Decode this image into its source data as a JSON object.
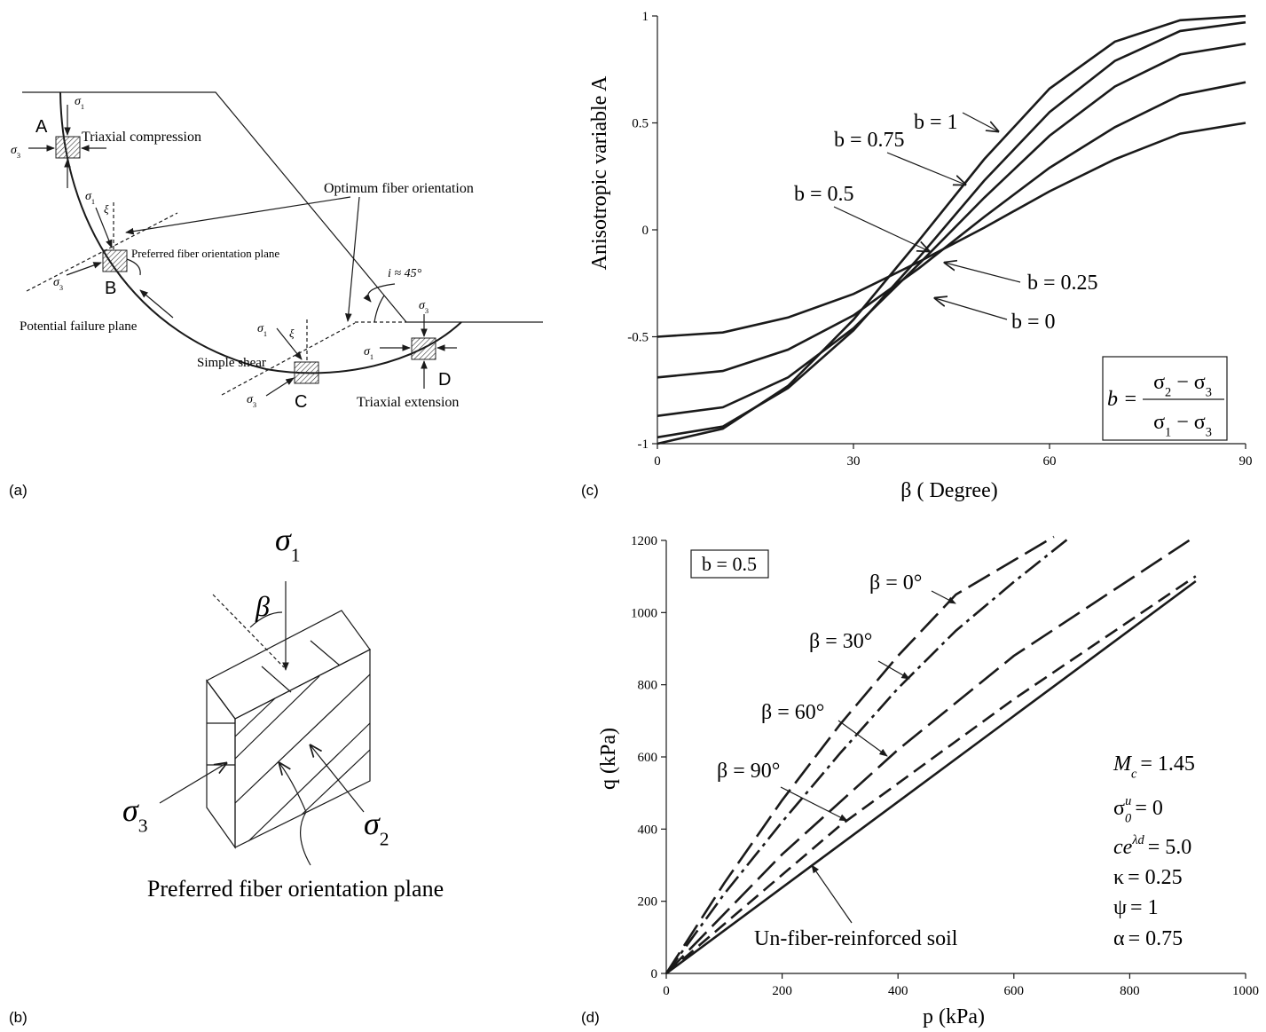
{
  "panel_labels": [
    "(a)",
    "(b)",
    "(c)",
    "(d)"
  ],
  "symbols": {
    "sigma": "σ",
    "sub1": "1",
    "sub2": "2",
    "sub3": "3",
    "xi": "ξ",
    "beta": "β"
  },
  "diagram_a": {
    "points": [
      "A",
      "B",
      "C",
      "D"
    ],
    "labels": {
      "triaxial_compression": "Triaxial compression",
      "optimum": "Optimum fiber orientation",
      "preferred": "Preferred fiber orientation plane",
      "failure": "Potential failure plane",
      "simple_shear": "Simple shear",
      "triaxial_extension": "Triaxial extension",
      "inclination": "i ≈ 45°"
    }
  },
  "diagram_b": {
    "caption": "Preferred fiber orientation plane"
  },
  "chart_data": [
    {
      "type": "line",
      "y_label": "Anisotropic variable A",
      "x_label": "β ( Degree)",
      "x": [
        0,
        10,
        20,
        30,
        40,
        50,
        60,
        70,
        80,
        90
      ],
      "series": [
        {
          "name": "b = 1",
          "color": "#1a1a1a",
          "style": "solid",
          "values": [
            -1,
            -0.93,
            -0.73,
            -0.42,
            -0.05,
            0.33,
            0.66,
            0.88,
            0.98,
            1
          ]
        },
        {
          "name": "b = 0.75",
          "color": "#1a1a1a",
          "style": "solid",
          "values": [
            -0.97,
            -0.92,
            -0.74,
            -0.47,
            -0.13,
            0.23,
            0.55,
            0.79,
            0.93,
            0.97
          ]
        },
        {
          "name": "b = 0.5",
          "color": "#1a1a1a",
          "style": "solid",
          "values": [
            -0.87,
            -0.83,
            -0.69,
            -0.46,
            -0.16,
            0.15,
            0.44,
            0.67,
            0.82,
            0.87
          ]
        },
        {
          "name": "b = 0.25",
          "color": "#1a1a1a",
          "style": "solid",
          "values": [
            -0.69,
            -0.66,
            -0.56,
            -0.4,
            -0.18,
            0.06,
            0.29,
            0.48,
            0.63,
            0.69
          ]
        },
        {
          "name": "b = 0",
          "color": "#1a1a1a",
          "style": "solid",
          "values": [
            -0.5,
            -0.48,
            -0.41,
            -0.3,
            -0.15,
            0.01,
            0.18,
            0.33,
            0.45,
            0.5
          ]
        }
      ],
      "xlim": [
        0,
        90
      ],
      "xticks": [
        0,
        30,
        60,
        90
      ],
      "ylim": [
        -1,
        1
      ],
      "yticks": [
        -1,
        -0.5,
        0,
        0.5,
        1
      ],
      "formula": {
        "lhs": "b =",
        "operator": "−",
        "numerator": [
          "2",
          "3"
        ],
        "denominator": [
          "1",
          "3"
        ]
      }
    },
    {
      "type": "line",
      "box_label": "b = 0.5",
      "x_label": "p (kPa)",
      "y_label": "q (kPa)",
      "series": [
        {
          "name": "β = 0°",
          "color": "#1a1a1a",
          "style": "long-dash",
          "x": [
            0,
            100,
            200,
            300,
            400,
            500,
            669
          ],
          "values": [
            0,
            250,
            480,
            690,
            880,
            1050,
            1210
          ]
        },
        {
          "name": "β = 30°",
          "color": "#1a1a1a",
          "style": "dash-dot",
          "x": [
            0,
            100,
            200,
            300,
            400,
            500,
            600,
            694
          ],
          "values": [
            0,
            220,
            420,
            610,
            790,
            950,
            1085,
            1205
          ]
        },
        {
          "name": "β = 60°",
          "color": "#1a1a1a",
          "style": "long-dash",
          "x": [
            0,
            200,
            400,
            600,
            914
          ],
          "values": [
            0,
            330,
            620,
            880,
            1212
          ]
        },
        {
          "name": "β = 90°",
          "color": "#1a1a1a",
          "style": "dash",
          "x": [
            0,
            300,
            600,
            914
          ],
          "values": [
            0,
            410,
            760,
            1101
          ]
        },
        {
          "name": "Un-fiber-reinforced soil",
          "color": "#1a1a1a",
          "style": "solid",
          "x": [
            0,
            914
          ],
          "values": [
            0,
            1087
          ]
        }
      ],
      "xlim": [
        0,
        1000
      ],
      "xticks": [
        0,
        200,
        400,
        600,
        800,
        1000
      ],
      "ylim": [
        0,
        1200
      ],
      "yticks": [
        0,
        200,
        400,
        600,
        800,
        1000,
        1200
      ],
      "params": [
        {
          "base": "M",
          "sub": "c",
          "rest": "= 1.45"
        },
        {
          "base": "σ",
          "sub": "0",
          "sup": "u",
          "rest": "= 0"
        },
        {
          "base": "ce",
          "sup": "λd",
          "rest": "= 5.0"
        },
        {
          "base": "κ",
          "rest": "= 0.25"
        },
        {
          "base": "ψ",
          "rest": "= 1"
        },
        {
          "base": "α",
          "rest": "= 0.75"
        }
      ]
    }
  ]
}
